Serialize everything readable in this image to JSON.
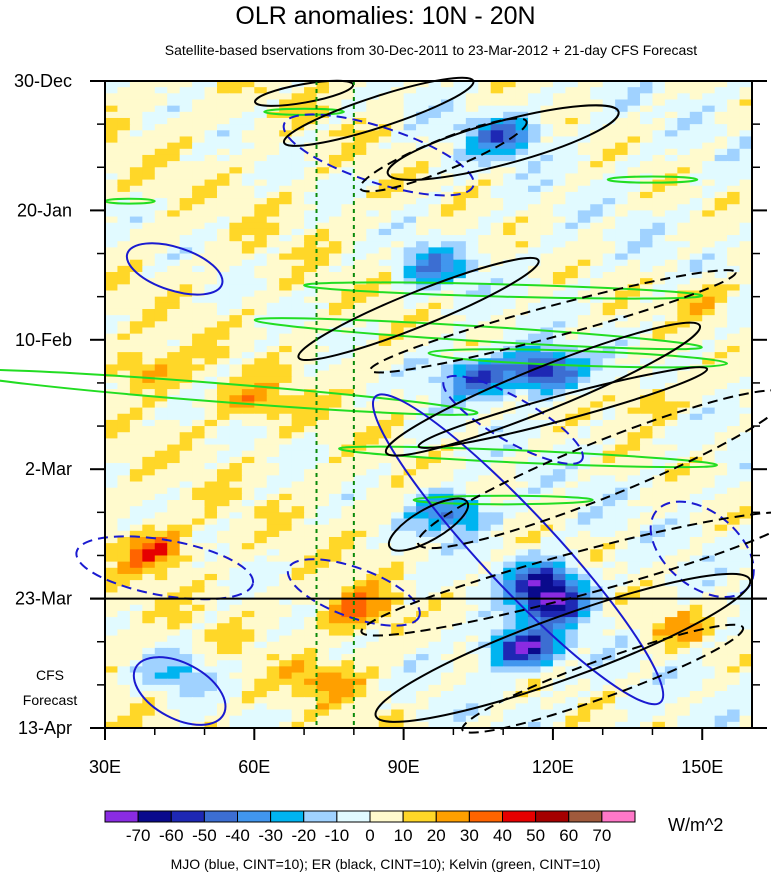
{
  "title": "OLR anomalies: 10N - 20N",
  "subtitle": "Satellite-based bservations from 30-Dec-2011 to 23-Mar-2012 + 21-day CFS Forecast",
  "footer": "MJO (blue, CINT=10); ER (black, CINT=10); Kelvin (green, CINT=10)",
  "units": "W/m^2",
  "forecast_note": [
    "CFS",
    "Forecast"
  ],
  "chart_data": {
    "type": "heatmap",
    "title": "OLR anomalies: 10N - 20N",
    "x_axis": {
      "range": [
        30,
        160
      ],
      "ticks": [
        30,
        60,
        90,
        120,
        150
      ],
      "tick_labels": [
        "30E",
        "60E",
        "90E",
        "120E",
        "150E"
      ]
    },
    "y_axis": {
      "ticks": [
        "30-Dec",
        "20-Jan",
        "10-Feb",
        "2-Mar",
        "23-Mar",
        "13-Apr"
      ],
      "tick_days": [
        0,
        21,
        42,
        63,
        84,
        105
      ],
      "range_days": [
        0,
        105
      ],
      "direction": "time increases downward"
    },
    "reference_lines": {
      "vertical_dashed_green_lon": [
        72.5,
        80
      ],
      "horizontal_line_day": 84
    },
    "colorbar": {
      "levels": [
        -70,
        -60,
        -50,
        -40,
        -30,
        -20,
        -10,
        0,
        10,
        20,
        30,
        40,
        50,
        60,
        70
      ],
      "labels": [
        "-70",
        "-60",
        "-50",
        "-40",
        "-30",
        "-20",
        "-10",
        "0",
        "10",
        "20",
        "30",
        "40",
        "50",
        "60",
        "70"
      ],
      "colors": [
        "#8a2be2",
        "#0a0a8c",
        "#1e28b4",
        "#3c6ed2",
        "#4196ee",
        "#00b4f0",
        "#a0d2ff",
        "#e1faff",
        "#fffacd",
        "#ffd728",
        "#ffa000",
        "#ff6400",
        "#e60000",
        "#a50000",
        "#a05a3c",
        "#ff78c8"
      ],
      "units": "W/m^2"
    },
    "anomaly_features": [
      {
        "lon": 110,
        "day": 9,
        "value": -45
      },
      {
        "lon": 96,
        "day": 30,
        "value": -35
      },
      {
        "lon": 118,
        "day": 47,
        "value": -65
      },
      {
        "lon": 105,
        "day": 48,
        "value": -50
      },
      {
        "lon": 100,
        "day": 70,
        "value": -45
      },
      {
        "lon": 118,
        "day": 81,
        "value": -55
      },
      {
        "lon": 114,
        "day": 92,
        "value": -70
      },
      {
        "lon": 120,
        "day": 85,
        "value": -60
      },
      {
        "lon": 40,
        "day": 76,
        "value": 35
      },
      {
        "lon": 38,
        "day": 47,
        "value": 25
      },
      {
        "lon": 80,
        "day": 86,
        "value": 30
      },
      {
        "lon": 60,
        "day": 52,
        "value": 20
      },
      {
        "lon": 140,
        "day": 52,
        "value": 20
      },
      {
        "lon": 150,
        "day": 35,
        "value": 20
      },
      {
        "lon": 45,
        "day": 96,
        "value": -25
      },
      {
        "lon": 75,
        "day": 97,
        "value": 20
      },
      {
        "lon": 145,
        "day": 89,
        "value": 20
      }
    ],
    "contour_sets": [
      {
        "name": "MJO",
        "color": "blue",
        "cint": 10
      },
      {
        "name": "ER",
        "color": "black",
        "cint": 10
      },
      {
        "name": "Kelvin",
        "color": "green",
        "cint": 10
      }
    ]
  }
}
